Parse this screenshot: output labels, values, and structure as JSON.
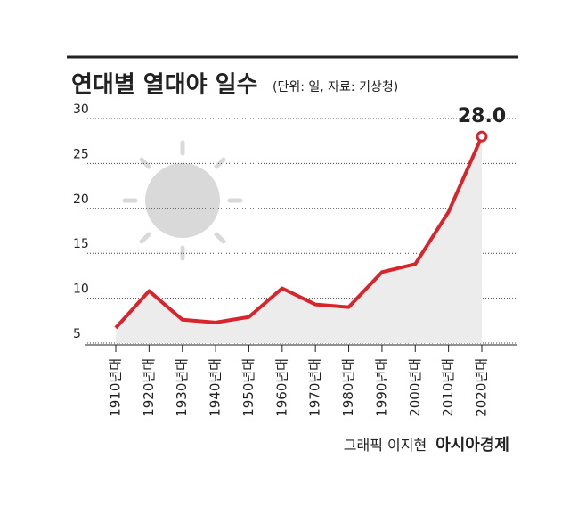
{
  "chart_data": {
    "type": "line",
    "title": "연대별 열대야 일수",
    "subtitle": "(단위: 일, 자료: 기상청)",
    "categories": [
      "1910년대",
      "1920년대",
      "1930년대",
      "1940년대",
      "1950년대",
      "1960년대",
      "1970년대",
      "1980년대",
      "1990년대",
      "2000년대",
      "2010년대",
      "2020년대"
    ],
    "values": [
      6.7,
      10.8,
      7.6,
      7.3,
      7.9,
      11.1,
      9.3,
      9.0,
      12.9,
      13.8,
      19.6,
      28.0
    ],
    "value_labels": [
      null,
      null,
      null,
      null,
      null,
      null,
      null,
      null,
      null,
      null,
      null,
      "28.0"
    ],
    "color": "#d7252b",
    "area_color": "#ececec",
    "ylim": [
      5,
      30
    ],
    "yticks": [
      5,
      10,
      15,
      20,
      25,
      30
    ],
    "grid": true,
    "credit": "그래픽 이지현",
    "source": "아시아경제"
  }
}
